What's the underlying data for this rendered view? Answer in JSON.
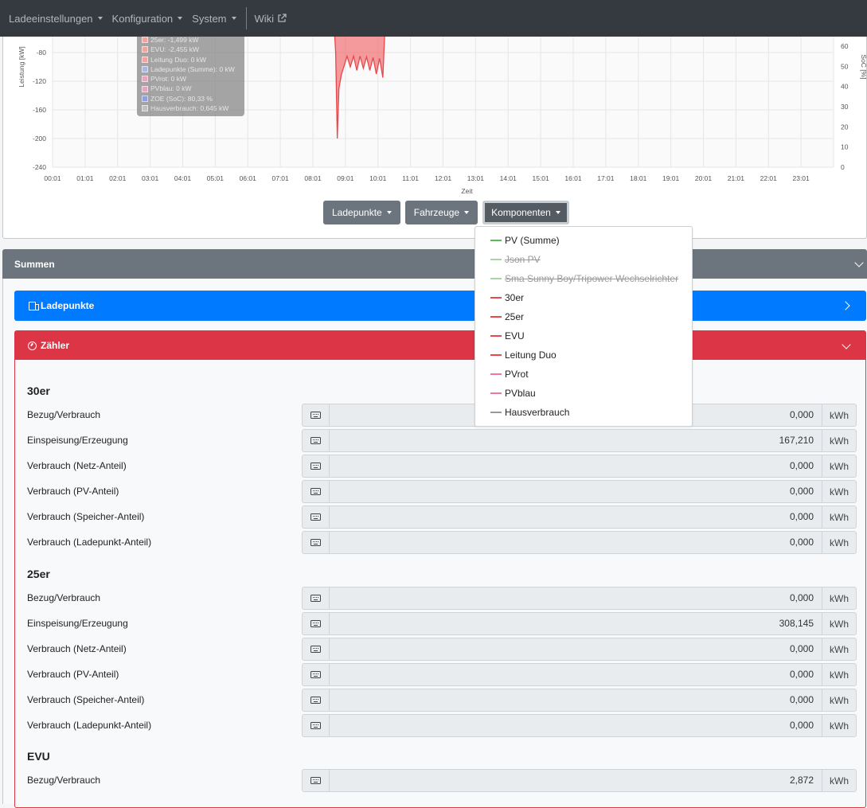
{
  "navbar": {
    "items": [
      {
        "label": "Ladeeinstellungen"
      },
      {
        "label": "Konfiguration"
      },
      {
        "label": "System"
      }
    ],
    "wiki_label": "Wiki"
  },
  "chart_data": {
    "type": "area",
    "xlabel": "Zeit",
    "ylabel": "Leistung [kW]",
    "y2label": "SoC [%]",
    "x_ticks": [
      "00:01",
      "01:01",
      "02:01",
      "03:01",
      "04:01",
      "05:01",
      "06:01",
      "07:01",
      "08:01",
      "09:01",
      "10:01",
      "11:01",
      "12:01",
      "13:01",
      "14:01",
      "15:01",
      "16:01",
      "17:01",
      "18:01",
      "19:01",
      "20:01",
      "21:01",
      "22:01",
      "23:01"
    ],
    "y_ticks": [
      -80,
      -120,
      -160,
      -200,
      -240
    ],
    "y2_ticks": [
      60,
      50,
      40,
      30,
      20,
      10,
      0
    ],
    "series": [
      {
        "name": "Leitung Duo",
        "color": "#e8474b",
        "x": [
          8.65,
          8.7,
          8.75,
          8.8,
          8.88,
          8.95,
          9.05,
          9.15,
          9.25,
          9.35,
          9.45,
          9.55,
          9.65,
          9.75,
          9.85,
          9.95,
          10.05,
          10.15,
          10.22
        ],
        "y": [
          -40,
          -80,
          -200,
          -130,
          -110,
          -100,
          -85,
          -100,
          -85,
          -105,
          -85,
          -102,
          -86,
          -105,
          -87,
          -110,
          -88,
          -115,
          -40
        ]
      }
    ],
    "tooltip": [
      {
        "label": "25er: -1,499 kW",
        "color": "#f4a3a3"
      },
      {
        "label": "EVU: -2,455 kW",
        "color": "#f4a3a3"
      },
      {
        "label": "Leitung Duo: 0 kW",
        "color": "#f4a3a3"
      },
      {
        "label": "Ladepunkte (Summe): 0 kW",
        "color": "#a8b8e0"
      },
      {
        "label": "PVrot: 0 kW",
        "color": "#e8a3c0"
      },
      {
        "label": "PVblau: 0 kW",
        "color": "#e8a3c0"
      },
      {
        "label": "ZOE (SoC): 80,33 %",
        "color": "#8fa0e0"
      },
      {
        "label": "Hausverbrauch: 0,645 kW",
        "color": "#c0c0c0"
      }
    ]
  },
  "chart_buttons": [
    {
      "label": "Ladepunkte"
    },
    {
      "label": "Fahrzeuge"
    },
    {
      "label": "Komponenten"
    }
  ],
  "dropdown": {
    "items": [
      {
        "label": "PV (Summe)",
        "color": "#5cb85c",
        "enabled": true
      },
      {
        "label": "Json PV",
        "color": "#5cb85c",
        "enabled": false
      },
      {
        "label": "Sma Sunny Boy/Tripower Wechselrichter",
        "color": "#5cb85c",
        "enabled": false
      },
      {
        "label": "30er",
        "color": "#e84a4a",
        "enabled": true
      },
      {
        "label": "25er",
        "color": "#e84a4a",
        "enabled": true
      },
      {
        "label": "EVU",
        "color": "#e84a4a",
        "enabled": true
      },
      {
        "label": "Leitung Duo",
        "color": "#e84a4a",
        "enabled": true
      },
      {
        "label": "PVrot",
        "color": "#e87aa0",
        "enabled": true
      },
      {
        "label": "PVblau",
        "color": "#e87aa0",
        "enabled": true
      },
      {
        "label": "Hausverbrauch",
        "color": "#999999",
        "enabled": true
      }
    ]
  },
  "summen": {
    "title": "Summen"
  },
  "ladepunkte_card": {
    "title": "Ladepunkte"
  },
  "zaehler": {
    "title": "Zähler",
    "unit": "kWh",
    "groups": [
      {
        "name": "30er",
        "rows": [
          {
            "label": "Bezug/Verbrauch",
            "value": "0,000"
          },
          {
            "label": "Einspeisung/Erzeugung",
            "value": "167,210"
          },
          {
            "label": "Verbrauch (Netz-Anteil)",
            "value": "0,000"
          },
          {
            "label": "Verbrauch (PV-Anteil)",
            "value": "0,000"
          },
          {
            "label": "Verbrauch (Speicher-Anteil)",
            "value": "0,000"
          },
          {
            "label": "Verbrauch (Ladepunkt-Anteil)",
            "value": "0,000"
          }
        ]
      },
      {
        "name": "25er",
        "rows": [
          {
            "label": "Bezug/Verbrauch",
            "value": "0,000"
          },
          {
            "label": "Einspeisung/Erzeugung",
            "value": "308,145"
          },
          {
            "label": "Verbrauch (Netz-Anteil)",
            "value": "0,000"
          },
          {
            "label": "Verbrauch (PV-Anteil)",
            "value": "0,000"
          },
          {
            "label": "Verbrauch (Speicher-Anteil)",
            "value": "0,000"
          },
          {
            "label": "Verbrauch (Ladepunkt-Anteil)",
            "value": "0,000"
          }
        ]
      },
      {
        "name": "EVU",
        "rows": [
          {
            "label": "Bezug/Verbrauch",
            "value": "2,872"
          }
        ]
      }
    ]
  }
}
